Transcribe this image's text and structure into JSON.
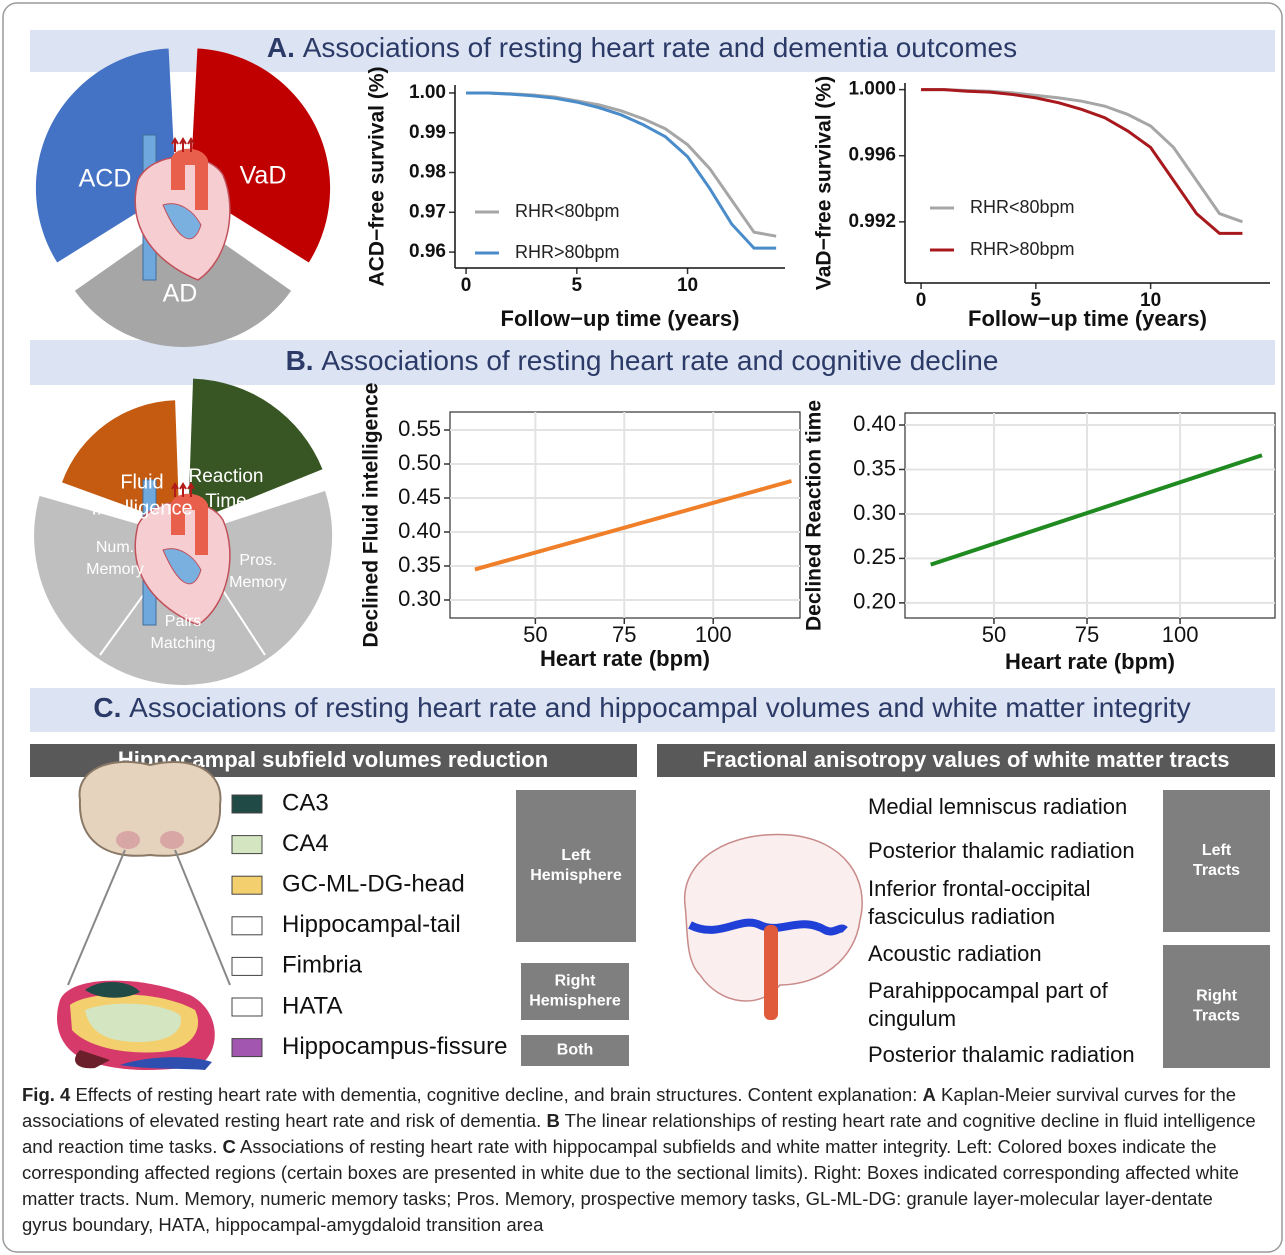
{
  "panels": [
    {
      "letter": "A.",
      "title": "Associations of resting heart rate and dementia outcomes",
      "pie_labels": [
        "ACD",
        "VaD",
        "AD"
      ]
    },
    {
      "letter": "B.",
      "title": "Associations of resting heart rate and cognitive decline",
      "pie_labels": [
        [
          "Fluid",
          "Intelligence"
        ],
        [
          "Reaction",
          "Time"
        ],
        [
          "Num.",
          "Memory"
        ],
        [
          "Pros.",
          "Memory"
        ],
        [
          "Pairs",
          "Matching"
        ]
      ]
    },
    {
      "letter": "C.",
      "title": "Associations of resting heart rate and hippocampal volumes and white matter integrity"
    }
  ],
  "chart_data": [
    {
      "type": "line",
      "x": [
        0,
        1,
        2,
        3,
        4,
        5,
        6,
        7,
        8,
        9,
        10,
        11,
        12,
        13,
        14
      ],
      "xlim": [
        -0.5,
        14.4
      ],
      "xticks": [
        0,
        5,
        10
      ],
      "ylim": [
        0.956,
        1.002
      ],
      "yticks": [
        {
          "value": 1,
          "label": "1.00"
        },
        0.99,
        0.98,
        0.97,
        0.96
      ],
      "xlabel": "Follow−up time (years)",
      "ylabel": "ACD−free survival (%)",
      "grid": false,
      "series": [
        {
          "name": "RHR<80bpm",
          "color": "#a6a6a6",
          "values": [
            1,
            1,
            0.9998,
            0.9995,
            0.999,
            0.998,
            0.997,
            0.9955,
            0.9935,
            0.991,
            0.987,
            0.981,
            0.973,
            0.965,
            0.964
          ]
        },
        {
          "name": "RHR>80bpm",
          "color": "#4a8cc9",
          "values": [
            1,
            1,
            0.9997,
            0.9993,
            0.9987,
            0.9977,
            0.9963,
            0.9945,
            0.992,
            0.989,
            0.984,
            0.976,
            0.967,
            0.961,
            0.961
          ]
        }
      ]
    },
    {
      "type": "line",
      "x": [
        0,
        1,
        2,
        3,
        4,
        5,
        6,
        7,
        8,
        9,
        10,
        11,
        12,
        13,
        14
      ],
      "xlim": [
        -0.7,
        15.2
      ],
      "xticks": [
        0,
        5,
        10
      ],
      "ylim": [
        0.9883,
        1.0004
      ],
      "yticks": [
        {
          "value": 1,
          "label": "1.000"
        },
        0.996,
        0.992
      ],
      "xlabel": "Follow−up time (years)",
      "ylabel": "VaD−free survival (%)",
      "grid": false,
      "series": [
        {
          "name": "RHR<80bpm",
          "color": "#a6a6a6",
          "values": [
            1,
            1,
            0.99995,
            0.9999,
            0.9998,
            0.99965,
            0.9995,
            0.9993,
            0.999,
            0.9985,
            0.9978,
            0.9965,
            0.9945,
            0.9925,
            0.992
          ]
        },
        {
          "name": "RHR>80bpm",
          "color": "#a8191e",
          "values": [
            1,
            1,
            0.9999,
            0.99985,
            0.9997,
            0.9995,
            0.9992,
            0.9988,
            0.9983,
            0.9975,
            0.9965,
            0.9945,
            0.9925,
            0.9913,
            0.9913
          ]
        }
      ]
    },
    {
      "type": "line",
      "x": [
        33,
        122
      ],
      "xlim": [
        26,
        124.4
      ],
      "xticks": [
        50,
        75,
        100
      ],
      "ylim": [
        0.2735,
        0.5765
      ],
      "yticks": [
        0.55,
        {
          "value": 0.5,
          "label": "0.50"
        },
        0.45,
        {
          "value": 0.4,
          "label": "0.40"
        },
        0.35,
        {
          "value": 0.3,
          "label": "0.30"
        }
      ],
      "xlabel": "Heart rate (bpm)",
      "ylabel": "Declined Fluid intelligence",
      "grid": true,
      "series": [
        {
          "color": "#f07f2a",
          "values": [
            0.345,
            0.475
          ]
        }
      ]
    },
    {
      "type": "line",
      "x": [
        33,
        122
      ],
      "xlim": [
        26.1,
        125.5
      ],
      "xticks": [
        50,
        75,
        100
      ],
      "ylim": [
        0.183,
        0.4135
      ],
      "yticks": [
        {
          "value": 0.4,
          "label": "0.40"
        },
        0.35,
        {
          "value": 0.3,
          "label": "0.30"
        },
        0.25,
        {
          "value": 0.2,
          "label": "0.20"
        }
      ],
      "xlabel": "Heart rate (bpm)",
      "ylabel": "Declined Reaction time",
      "grid": true,
      "series": [
        {
          "color": "#1f8a1f",
          "values": [
            0.243,
            0.366
          ]
        }
      ]
    }
  ],
  "hippocampus": {
    "header": "Hippocampal subfield volumes reduction",
    "legend": [
      {
        "label": "CA3",
        "color": "#1f4a45"
      },
      {
        "label": "CA4",
        "color": "#d3e6c1"
      },
      {
        "label": "GC-ML-DG-head",
        "color": "#f4cf6e"
      },
      {
        "label": "Hippocampal-tail",
        "color": "#ffffff"
      },
      {
        "label": "Fimbria",
        "color": "#ffffff"
      },
      {
        "label": "HATA",
        "color": "#ffffff"
      },
      {
        "label": "Hippocampus-fissure",
        "color": "#a256b0"
      }
    ],
    "boxes": [
      [
        "Left",
        "Hemisphere"
      ],
      [
        "Right",
        "Hemisphere"
      ],
      [
        "Both"
      ]
    ]
  },
  "white_matter": {
    "header": "Fractional anisotropy values of white matter tracts",
    "tracts": [
      [
        "Medial lemniscus radiation"
      ],
      [
        "Posterior thalamic radiation"
      ],
      [
        "Inferior frontal-occipital",
        "fasciculus radiation"
      ],
      [
        "Acoustic radiation"
      ],
      [
        "Parahippocampal part of",
        "cingulum"
      ],
      [
        "Posterior thalamic radiation"
      ]
    ],
    "boxes": [
      [
        "Left",
        "Tracts"
      ],
      [
        "Right",
        "Tracts"
      ]
    ]
  },
  "caption": {
    "label": "Fig. 4",
    "parts": [
      {
        "text": " Effects of resting heart rate with dementia, cognitive decline, and brain structures. Content explanation: "
      },
      {
        "text": "A",
        "bold": true
      },
      {
        "text": " Kaplan-Meier survival curves for the associations of elevated resting heart rate and risk of dementia. "
      },
      {
        "text": "B",
        "bold": true
      },
      {
        "text": " The linear relationships of resting heart rate and cognitive decline in fluid intelligence and reaction time tasks. "
      },
      {
        "text": "C",
        "bold": true
      },
      {
        "text": " Associations of resting heart rate with hippocampal subfields and white matter integrity. Left: Colored boxes indicate the corresponding affected regions (certain boxes are presented in white due to the sectional limits). Right: Boxes indicated corresponding affected white matter tracts. Num. Memory, numeric memory tasks; Pros. Memory, prospective memory tasks, GL-ML-DG: granule layer-molecular layer-dentate gyrus boundary, HATA, hippocampal-amygdaloid transition area"
      }
    ]
  }
}
